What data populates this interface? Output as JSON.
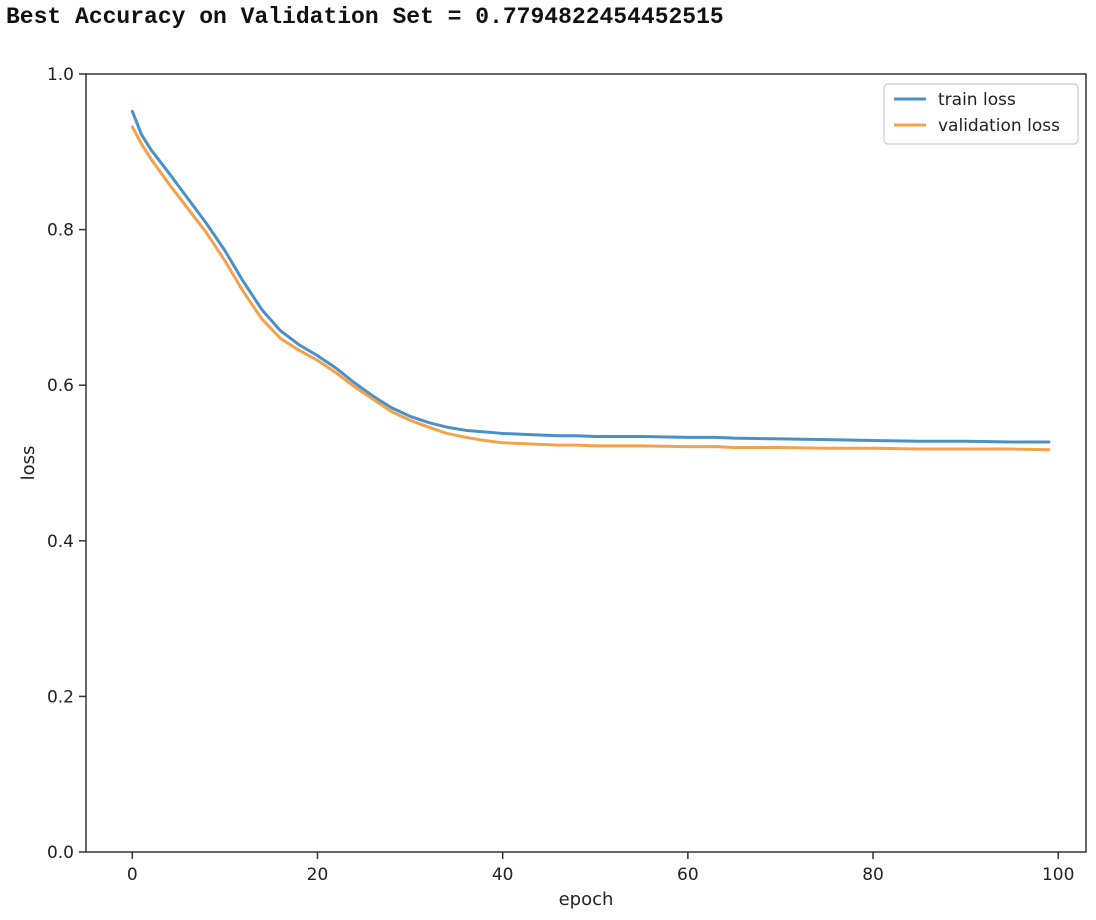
{
  "header": {
    "text": "Best Accuracy on Validation Set = 0.7794822454452515"
  },
  "chart_data": {
    "type": "line",
    "title": "",
    "xlabel": "epoch",
    "ylabel": "loss",
    "xlim": [
      -5,
      103
    ],
    "ylim": [
      0.0,
      1.0
    ],
    "xticks": [
      0,
      20,
      40,
      60,
      80,
      100
    ],
    "yticks": [
      0.0,
      0.2,
      0.4,
      0.6,
      0.8,
      1.0
    ],
    "xtick_labels": [
      "0",
      "20",
      "40",
      "60",
      "80",
      "100"
    ],
    "ytick_labels": [
      "0.0",
      "0.2",
      "0.4",
      "0.6",
      "0.8",
      "1.0"
    ],
    "grid": false,
    "legend_position": "top-right",
    "x": [
      0,
      1,
      2,
      4,
      6,
      8,
      10,
      12,
      14,
      16,
      18,
      20,
      22,
      24,
      26,
      28,
      30,
      32,
      34,
      36,
      38,
      40,
      42,
      44,
      46,
      48,
      50,
      55,
      60,
      63,
      65,
      70,
      75,
      80,
      85,
      90,
      95,
      99
    ],
    "series": [
      {
        "name": "train loss",
        "color": "#4a90c8",
        "values": [
          0.952,
          0.922,
          0.903,
          0.872,
          0.84,
          0.808,
          0.773,
          0.733,
          0.697,
          0.67,
          0.652,
          0.638,
          0.622,
          0.603,
          0.586,
          0.571,
          0.56,
          0.552,
          0.546,
          0.542,
          0.54,
          0.538,
          0.537,
          0.536,
          0.535,
          0.535,
          0.534,
          0.534,
          0.533,
          0.533,
          0.532,
          0.531,
          0.53,
          0.529,
          0.528,
          0.528,
          0.527,
          0.527
        ]
      },
      {
        "name": "validation loss",
        "color": "#f5a04a",
        "values": [
          0.932,
          0.91,
          0.891,
          0.858,
          0.827,
          0.796,
          0.76,
          0.72,
          0.685,
          0.66,
          0.645,
          0.632,
          0.616,
          0.598,
          0.582,
          0.566,
          0.555,
          0.546,
          0.538,
          0.533,
          0.529,
          0.526,
          0.525,
          0.524,
          0.523,
          0.523,
          0.522,
          0.522,
          0.521,
          0.521,
          0.52,
          0.52,
          0.519,
          0.519,
          0.518,
          0.518,
          0.518,
          0.517
        ]
      }
    ]
  }
}
